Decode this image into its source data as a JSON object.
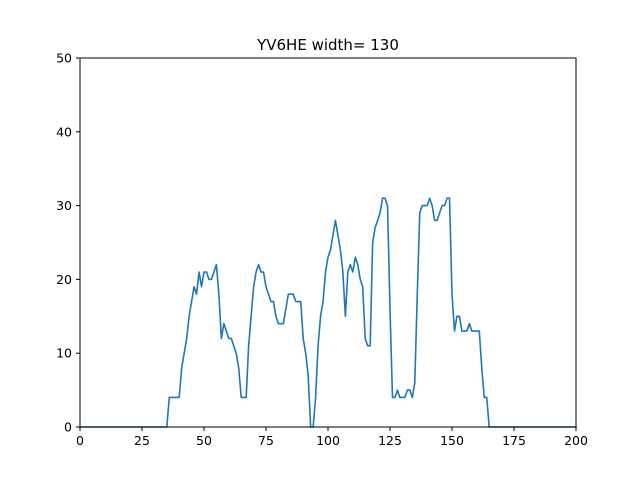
{
  "chart_data": {
    "type": "line",
    "title": "YV6HE width= 130",
    "xlabel": "",
    "ylabel": "",
    "xlim": [
      0,
      200
    ],
    "ylim": [
      0,
      50
    ],
    "xticks": [
      0,
      25,
      50,
      75,
      100,
      125,
      150,
      175,
      200
    ],
    "yticks": [
      0,
      10,
      20,
      30,
      40,
      50
    ],
    "grid": false,
    "line_color": "#1f77b4",
    "series": [
      {
        "x": [
          0,
          35,
          36,
          40,
          41,
          43,
          44,
          46,
          47,
          48,
          49,
          50,
          51,
          52,
          53,
          54,
          55,
          56,
          57,
          58,
          59,
          60,
          61,
          62,
          63,
          64,
          65,
          66,
          67,
          68,
          69,
          70,
          71,
          72,
          73,
          74,
          75,
          76,
          77,
          78,
          79,
          80,
          81,
          82,
          83,
          84,
          85,
          86,
          87,
          88,
          89,
          90,
          91,
          92,
          93,
          94,
          95,
          96,
          97,
          98,
          99,
          100,
          101,
          102,
          103,
          104,
          105,
          106,
          107,
          108,
          109,
          110,
          111,
          112,
          113,
          114,
          115,
          116,
          117,
          118,
          119,
          120,
          121,
          122,
          123,
          124,
          125,
          126,
          127,
          128,
          129,
          130,
          131,
          132,
          133,
          134,
          135,
          136,
          137,
          138,
          139,
          140,
          141,
          142,
          143,
          144,
          145,
          146,
          147,
          148,
          149,
          150,
          151,
          152,
          153,
          154,
          155,
          156,
          157,
          158,
          159,
          160,
          161,
          162,
          163,
          164,
          165,
          166,
          200
        ],
        "y": [
          0,
          0,
          4,
          4,
          8,
          12,
          15,
          19,
          18,
          21,
          19,
          21,
          21,
          20,
          20,
          21,
          22,
          18,
          12,
          14,
          13,
          12,
          12,
          11,
          10,
          8,
          4,
          4,
          4,
          11,
          15,
          19,
          21,
          22,
          21,
          21,
          19,
          18,
          17,
          17,
          15,
          14,
          14,
          14,
          16,
          18,
          18,
          18,
          17,
          17,
          17,
          12,
          10,
          7,
          0,
          0,
          4,
          11,
          15,
          17,
          21,
          23,
          24,
          26,
          28,
          26,
          24,
          21,
          15,
          21,
          22,
          21,
          23,
          22,
          20,
          19,
          12,
          11,
          11,
          25,
          27,
          28,
          29,
          31,
          31,
          30,
          16,
          4,
          4,
          5,
          4,
          4,
          4,
          5,
          5,
          4,
          6,
          18,
          29,
          30,
          30,
          30,
          31,
          30,
          28,
          28,
          29,
          30,
          30,
          31,
          31,
          18,
          13,
          15,
          15,
          13,
          13,
          13,
          14,
          13,
          13,
          13,
          13,
          8,
          4,
          4,
          0,
          0,
          0
        ]
      }
    ]
  }
}
